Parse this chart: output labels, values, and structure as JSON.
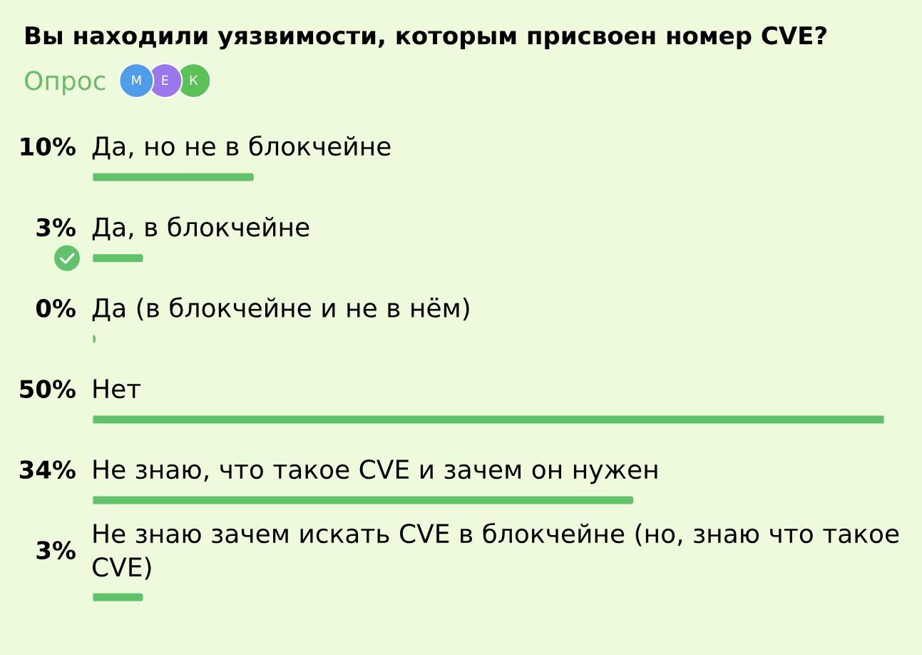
{
  "chart_data": {
    "type": "bar",
    "orientation": "horizontal",
    "title": "Вы находили уязвимости, которым присвоен номер CVE?",
    "subtitle": "Опрос",
    "categories": [
      "Да, но не в блокчейне",
      "Да, в блокчейне",
      "Да (в блокчейне и не в нём)",
      "Нет",
      "Не знаю, что такое CVE и зачем он нужен",
      "Не знаю зачем искать CVE в блокчейне (но, знаю что такое CVE)"
    ],
    "values": [
      10,
      3,
      0,
      50,
      34,
      3
    ],
    "value_labels": [
      "10%",
      "3%",
      "0%",
      "50%",
      "34%",
      "3%"
    ],
    "color": "#62c16b",
    "xlim": [
      0,
      50
    ],
    "tick_labels": "y",
    "annotations": [
      "М",
      "Е",
      "К"
    ]
  }
}
